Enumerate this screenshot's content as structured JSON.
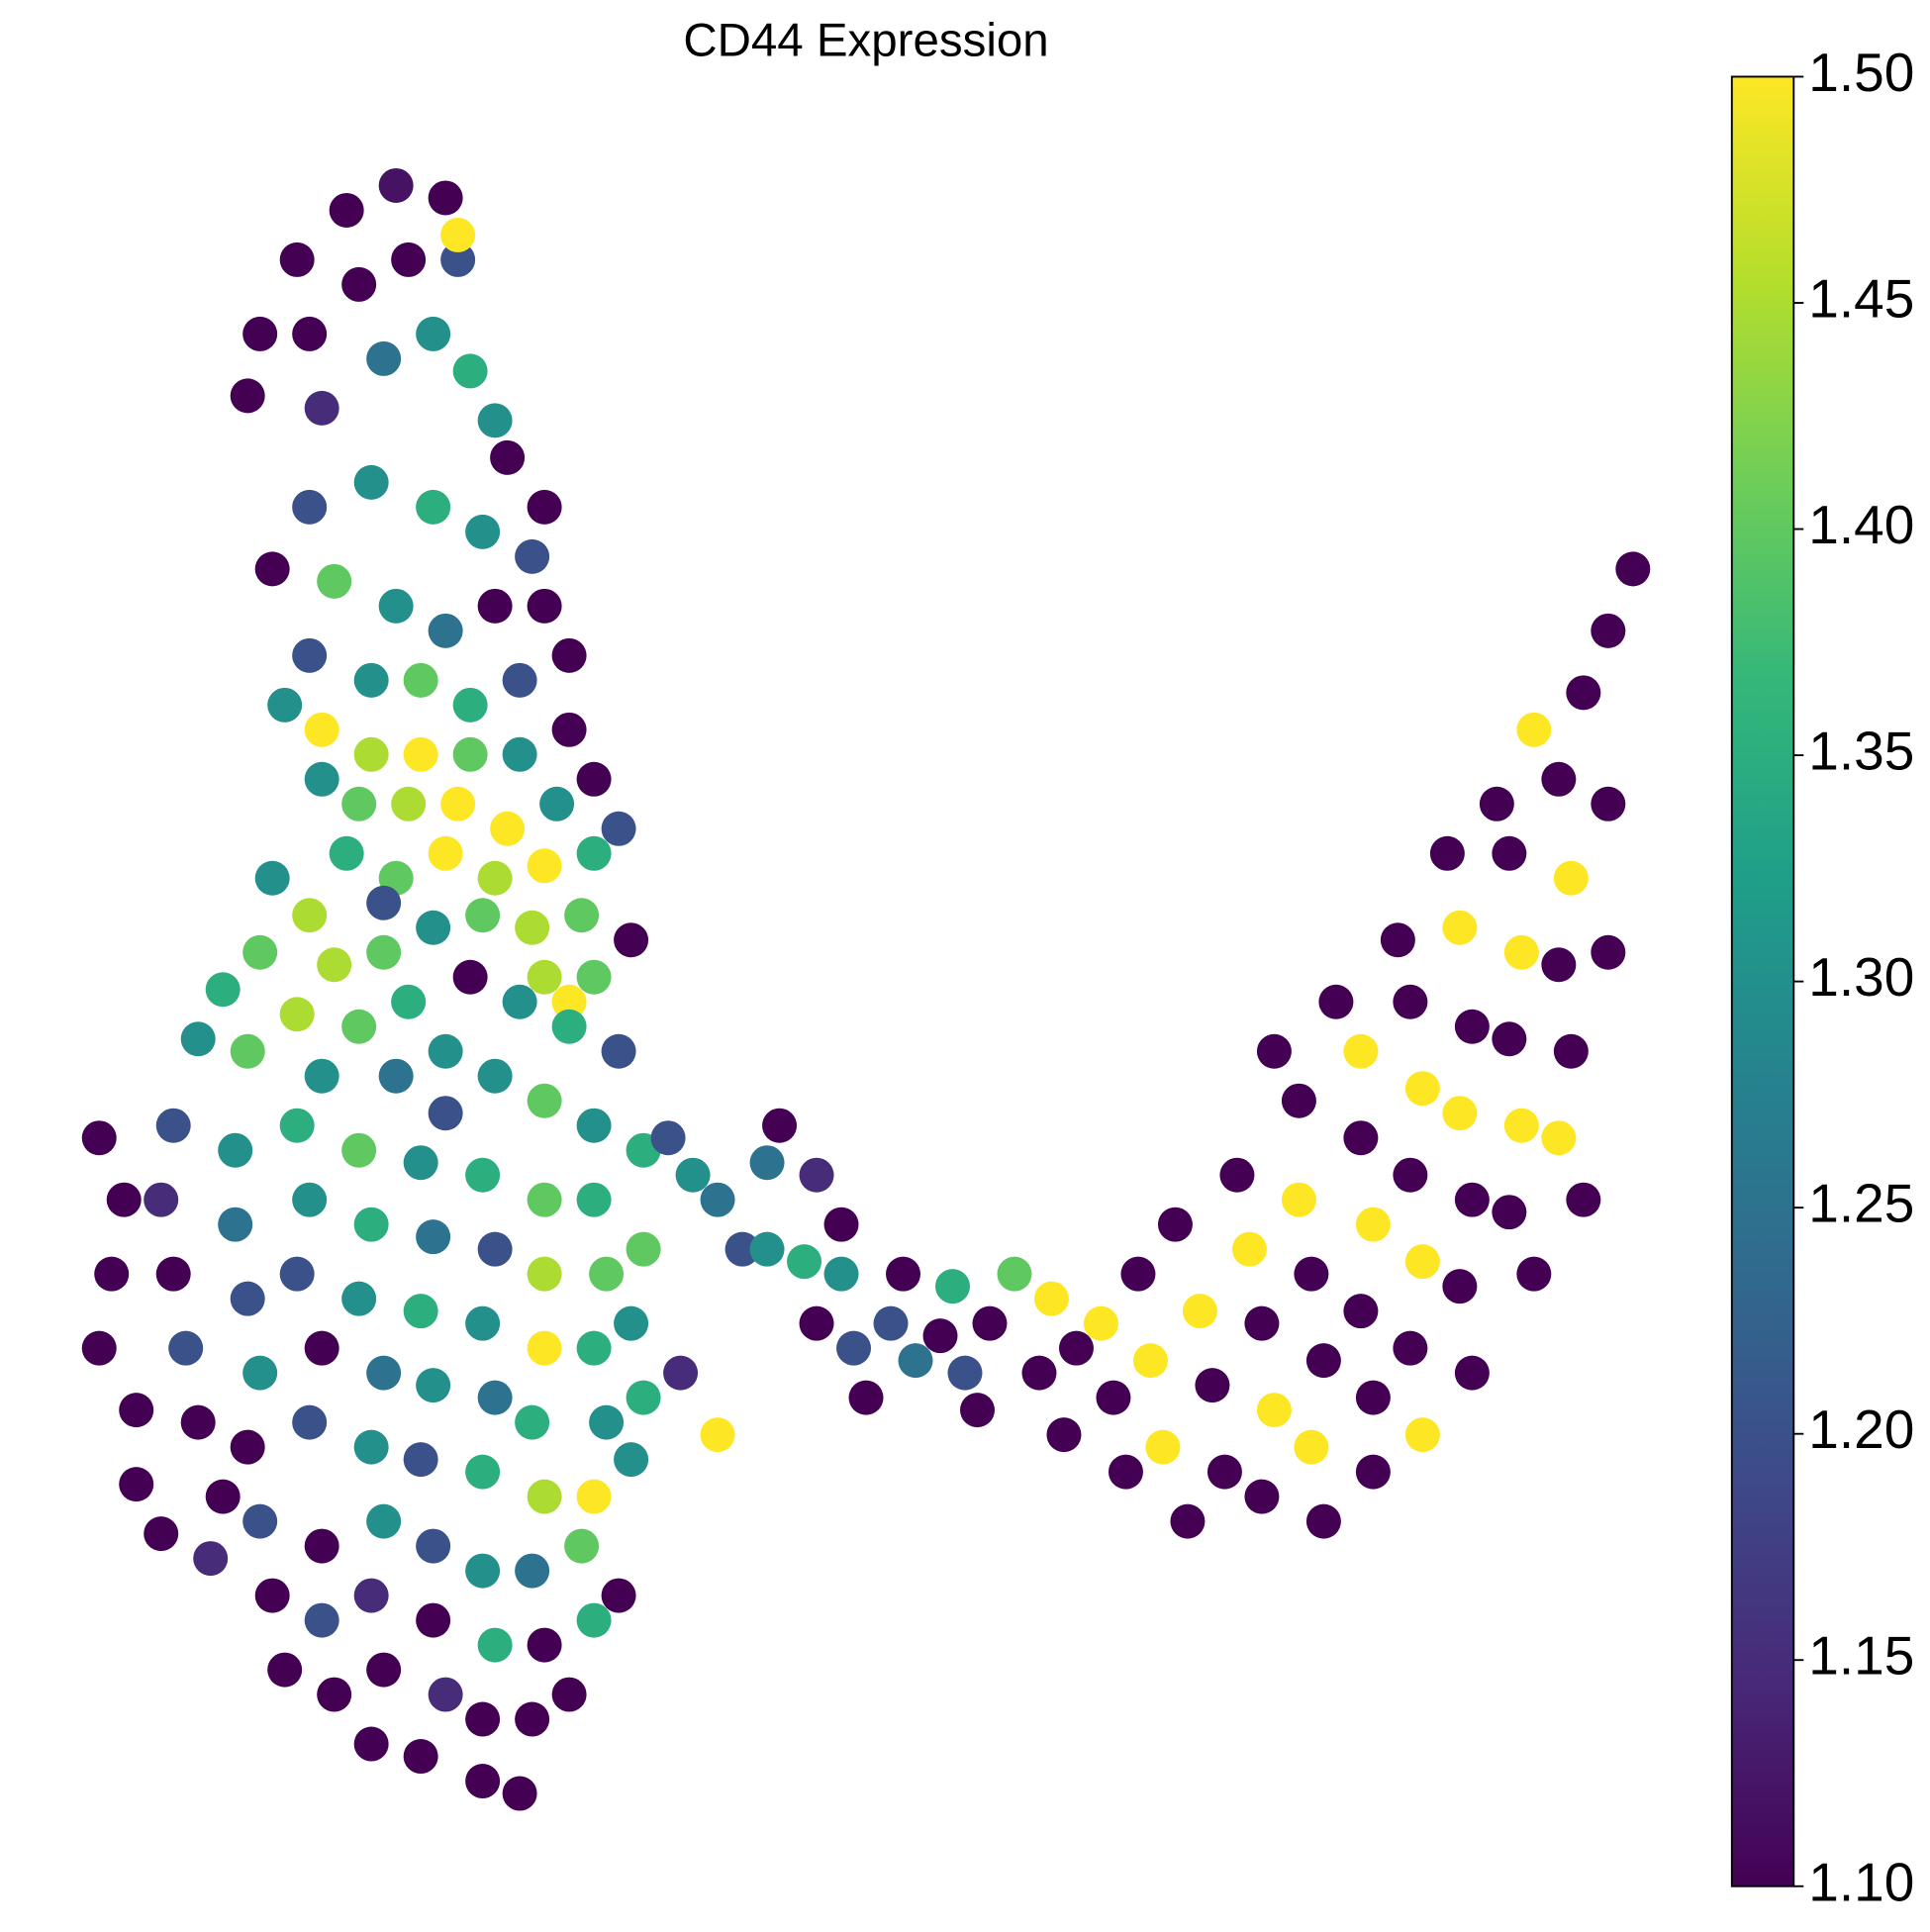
{
  "chart_data": {
    "type": "scatter",
    "title": "CD44 Expression",
    "colormap": "viridis",
    "clim": [
      1.1,
      1.5
    ],
    "xlim": [
      0,
      128
    ],
    "ylim": [
      0,
      136
    ],
    "colorbar_ticks": [
      {
        "value": 1.1,
        "label": "1.10"
      },
      {
        "value": 1.15,
        "label": "1.15"
      },
      {
        "value": 1.2,
        "label": "1.20"
      },
      {
        "value": 1.25,
        "label": "1.25"
      },
      {
        "value": 1.3,
        "label": "1.30"
      },
      {
        "value": 1.35,
        "label": "1.35"
      },
      {
        "value": 1.4,
        "label": "1.40"
      },
      {
        "value": 1.45,
        "label": "1.45"
      },
      {
        "value": 1.5,
        "label": "1.50"
      }
    ],
    "x": [
      15,
      18,
      22,
      26,
      30,
      31,
      27,
      23,
      19,
      14,
      20,
      25,
      29,
      32,
      34,
      31,
      35,
      38,
      37,
      33,
      29,
      24,
      19,
      16,
      21,
      26,
      30,
      34,
      38,
      40,
      36,
      32,
      28,
      24,
      19,
      17,
      20,
      24,
      28,
      32,
      36,
      40,
      42,
      39,
      35,
      31,
      27,
      23,
      20,
      22,
      26,
      30,
      34,
      38,
      42,
      44,
      41,
      37,
      33,
      29,
      25,
      38,
      42,
      45,
      40,
      16,
      19,
      15,
      21,
      25,
      12,
      18,
      23,
      27,
      10,
      14,
      30,
      26,
      20,
      32,
      36,
      40,
      44,
      34,
      38,
      42,
      46,
      30,
      2,
      4,
      3,
      2,
      5,
      8,
      7,
      8,
      9,
      10,
      13,
      13,
      14,
      15,
      14,
      18,
      19,
      18,
      20,
      19,
      23,
      24,
      23,
      25,
      24,
      28,
      29,
      28,
      29,
      28,
      33,
      34,
      33,
      34,
      33,
      38,
      38,
      38,
      37,
      38,
      42,
      43,
      42,
      43,
      42,
      46,
      45,
      46,
      45,
      5,
      7,
      12,
      11,
      15,
      16,
      17,
      20,
      20,
      21,
      25,
      24,
      25,
      24,
      29,
      29,
      30,
      28,
      33,
      34,
      33,
      33,
      37,
      38,
      37,
      36,
      41,
      42,
      40,
      44,
      48,
      50,
      52,
      54,
      56,
      59,
      62,
      56,
      57,
      60,
      62,
      60,
      63,
      64,
      66,
      67,
      68,
      70,
      72,
      71,
      73,
      52,
      49,
      74,
      76,
      79,
      78,
      81,
      80,
      84,
      83,
      86,
      87,
      85,
      88,
      90,
      89,
      91,
      92,
      93,
      94,
      95,
      96,
      97,
      96,
      99,
      99,
      100,
      101,
      100,
      101,
      104,
      104,
      105,
      104,
      105,
      105,
      108,
      109,
      108,
      109,
      108,
      109,
      112,
      113,
      112,
      113,
      112,
      113,
      116,
      117,
      116,
      117,
      116,
      118,
      120,
      121,
      120,
      121,
      120,
      122,
      118,
      122,
      124,
      126,
      115,
      111,
      107,
      102,
      97,
      124,
      124
    ],
    "y": [
      120,
      126,
      130,
      132,
      131,
      126,
      126,
      124,
      120,
      115,
      114,
      118,
      120,
      117,
      113,
      128,
      110,
      106,
      102,
      104,
      106,
      108,
      106,
      101,
      100,
      98,
      96,
      98,
      98,
      94,
      92,
      90,
      92,
      92,
      94,
      90,
      88,
      86,
      86,
      86,
      86,
      88,
      84,
      82,
      80,
      82,
      82,
      82,
      84,
      78,
      76,
      78,
      76,
      77,
      78,
      80,
      73,
      72,
      73,
      72,
      74,
      68,
      68,
      71,
      66,
      76,
      73,
      70,
      69,
      70,
      67,
      65,
      64,
      66,
      63,
      62,
      62,
      60,
      60,
      68,
      66,
      64,
      62,
      60,
      58,
      56,
      54,
      57,
      55,
      50,
      44,
      38,
      33,
      56,
      50,
      44,
      38,
      32,
      54,
      48,
      42,
      36,
      30,
      56,
      50,
      44,
      38,
      32,
      54,
      48,
      42,
      36,
      30,
      53,
      47,
      41,
      35,
      29,
      52,
      46,
      40,
      34,
      28,
      50,
      44,
      38,
      32,
      26,
      50,
      44,
      38,
      32,
      26,
      46,
      40,
      34,
      29,
      27,
      23,
      26,
      21,
      24,
      18,
      12,
      22,
      16,
      10,
      24,
      18,
      12,
      6,
      22,
      16,
      10,
      5,
      20,
      14,
      8,
      3,
      20,
      14,
      8,
      2,
      22,
      16,
      10,
      18,
      55,
      52,
      50,
      46,
      46,
      45,
      44,
      53,
      56,
      52,
      48,
      40,
      38,
      34,
      40,
      44,
      37,
      39,
      36,
      43,
      33,
      31,
      36,
      40,
      44,
      42,
      36,
      38,
      31,
      34,
      40,
      44,
      37,
      28,
      30,
      24,
      48,
      41,
      35,
      28,
      52,
      46,
      40,
      33,
      26,
      58,
      50,
      44,
      37,
      30,
      24,
      62,
      55,
      48,
      41,
      34,
      28,
      66,
      59,
      52,
      45,
      38,
      31,
      72,
      64,
      57,
      50,
      43,
      36,
      78,
      70,
      63,
      56,
      49,
      44,
      84,
      76,
      69,
      62,
      55,
      50,
      88,
      91,
      96,
      101,
      82,
      78,
      71,
      66,
      62,
      82,
      70
    ],
    "values": [
      1.1,
      1.1,
      1.1,
      1.12,
      1.1,
      1.2,
      1.1,
      1.1,
      1.1,
      1.1,
      1.15,
      1.25,
      1.3,
      1.35,
      1.3,
      1.5,
      1.1,
      1.1,
      1.2,
      1.3,
      1.35,
      1.3,
      1.2,
      1.1,
      1.4,
      1.3,
      1.25,
      1.1,
      1.1,
      1.1,
      1.2,
      1.35,
      1.4,
      1.3,
      1.2,
      1.3,
      1.5,
      1.45,
      1.5,
      1.4,
      1.3,
      1.1,
      1.1,
      1.3,
      1.5,
      1.5,
      1.45,
      1.4,
      1.3,
      1.35,
      1.4,
      1.5,
      1.45,
      1.5,
      1.35,
      1.2,
      1.4,
      1.45,
      1.4,
      1.3,
      1.2,
      1.45,
      1.4,
      1.1,
      1.5,
      1.3,
      1.45,
      1.4,
      1.45,
      1.4,
      1.35,
      1.45,
      1.4,
      1.35,
      1.3,
      1.4,
      1.3,
      1.25,
      1.3,
      1.1,
      1.3,
      1.35,
      1.2,
      1.3,
      1.4,
      1.3,
      1.35,
      1.2,
      1.1,
      1.1,
      1.1,
      1.1,
      1.1,
      1.2,
      1.15,
      1.1,
      1.2,
      1.1,
      1.3,
      1.25,
      1.2,
      1.3,
      1.1,
      1.35,
      1.3,
      1.2,
      1.1,
      1.2,
      1.4,
      1.35,
      1.3,
      1.25,
      1.3,
      1.3,
      1.25,
      1.35,
      1.3,
      1.2,
      1.35,
      1.2,
      1.3,
      1.25,
      1.35,
      1.4,
      1.45,
      1.5,
      1.35,
      1.45,
      1.35,
      1.4,
      1.35,
      1.3,
      1.5,
      1.4,
      1.3,
      1.35,
      1.3,
      1.1,
      1.1,
      1.1,
      1.15,
      1.2,
      1.1,
      1.1,
      1.1,
      1.2,
      1.1,
      1.3,
      1.15,
      1.1,
      1.1,
      1.2,
      1.1,
      1.15,
      1.1,
      1.3,
      1.35,
      1.1,
      1.1,
      1.25,
      1.1,
      1.1,
      1.1,
      1.4,
      1.35,
      1.1,
      1.1,
      1.2,
      1.3,
      1.25,
      1.2,
      1.3,
      1.35,
      1.3,
      1.25,
      1.1,
      1.15,
      1.1,
      1.1,
      1.2,
      1.1,
      1.2,
      1.1,
      1.25,
      1.1,
      1.2,
      1.35,
      1.1,
      1.5,
      1.15,
      1.1,
      1.4,
      1.5,
      1.1,
      1.1,
      1.1,
      1.1,
      1.5,
      1.1,
      1.5,
      1.1,
      1.5,
      1.1,
      1.1,
      1.5,
      1.1,
      1.1,
      1.1,
      1.5,
      1.1,
      1.5,
      1.1,
      1.1,
      1.5,
      1.1,
      1.1,
      1.5,
      1.1,
      1.5,
      1.1,
      1.5,
      1.1,
      1.1,
      1.1,
      1.1,
      1.5,
      1.1,
      1.5,
      1.1,
      1.5,
      1.5,
      1.1,
      1.5,
      1.1,
      1.1,
      1.1,
      1.1,
      1.5,
      1.1,
      1.5,
      1.1,
      1.1,
      1.1,
      1.5,
      1.1,
      1.1,
      1.5,
      1.1,
      1.5,
      1.1,
      1.1,
      1.1,
      1.1,
      1.1,
      1.1,
      1.1,
      1.1,
      1.1,
      1.1
    ]
  }
}
